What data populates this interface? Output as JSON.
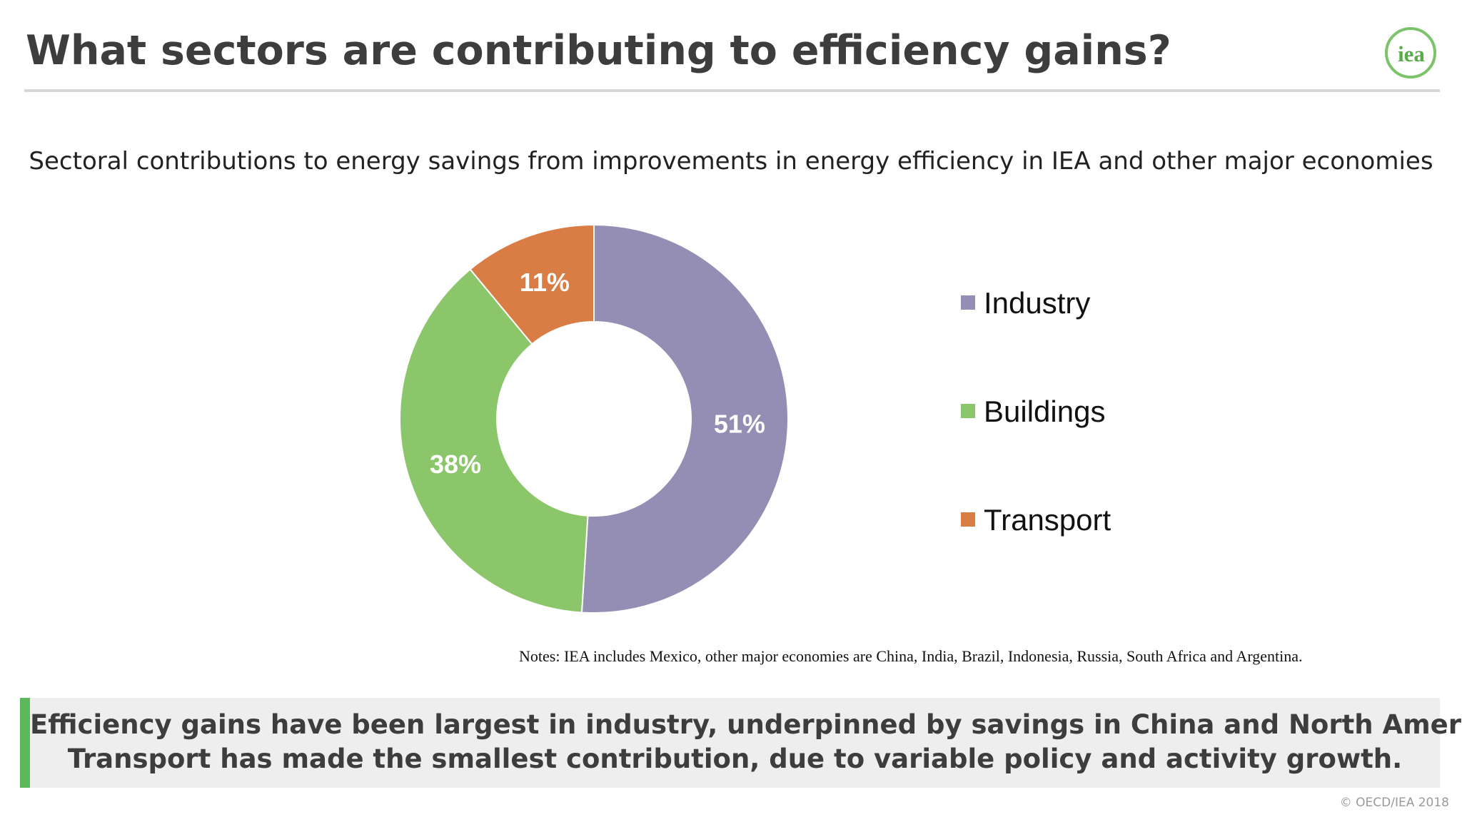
{
  "header": {
    "title": "What sectors are contributing to efficiency gains?",
    "logo_text": "iea"
  },
  "colors": {
    "industry": "#948db4",
    "buildings": "#8cc66b",
    "transport": "#d97d45",
    "accent_green": "#5cb85c"
  },
  "chart_data": {
    "type": "pie",
    "title": "Sectoral contributions to energy savings from improvements in energy efficiency in IEA and other major economies",
    "categories": [
      "Industry",
      "Buildings",
      "Transport"
    ],
    "values": [
      51,
      38,
      11
    ],
    "labels": [
      "51%",
      "38%",
      "11%"
    ],
    "colors": [
      "#948db4",
      "#8cc66b",
      "#d97d45"
    ],
    "donut": true,
    "legend": "right"
  },
  "notes": "Notes: IEA includes Mexico, other major economies are China, India, Brazil, Indonesia, Russia, South Africa and Argentina.",
  "callout": {
    "line1": "Efficiency gains have been largest in industry, underpinned by savings in China and North America.",
    "line2": "Transport has made the smallest contribution, due to variable policy and activity growth."
  },
  "footer": {
    "copyright": "© OECD/IEA 2018"
  }
}
